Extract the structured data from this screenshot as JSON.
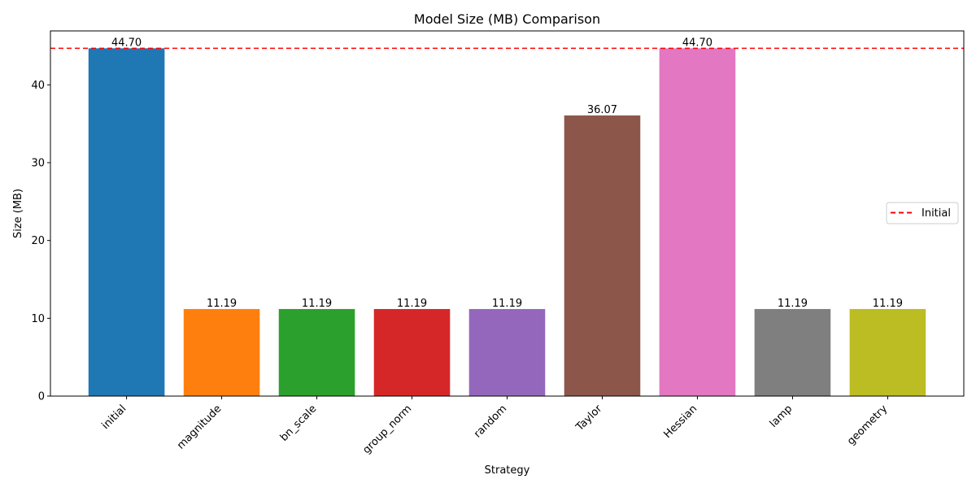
{
  "chart_data": {
    "type": "bar",
    "title": "Model Size (MB) Comparison",
    "xlabel": "Strategy",
    "ylabel": "Size (MB)",
    "categories": [
      "initial",
      "magnitude",
      "bn_scale",
      "group_norm",
      "random",
      "Taylor",
      "Hessian",
      "lamp",
      "geometry"
    ],
    "values": [
      44.7,
      11.19,
      11.19,
      11.19,
      11.19,
      36.07,
      44.7,
      11.19,
      11.19
    ],
    "value_labels": [
      "44.70",
      "11.19",
      "11.19",
      "11.19",
      "11.19",
      "36.07",
      "44.70",
      "11.19",
      "11.19"
    ],
    "colors": [
      "#1f77b4",
      "#ff7f0e",
      "#2ca02c",
      "#d62728",
      "#9467bd",
      "#8c564b",
      "#e377c2",
      "#7f7f7f",
      "#bcbd22"
    ],
    "ylim": [
      0,
      46.935
    ],
    "yticks": [
      0,
      10,
      20,
      30,
      40
    ],
    "ytick_labels": [
      "0",
      "10",
      "20",
      "30",
      "40"
    ],
    "grid": false,
    "reference_line": {
      "value": 44.7,
      "label": "Initial",
      "color": "#ff0000",
      "style": "dashed"
    },
    "legend": {
      "placement": "center-right",
      "entries": [
        "Initial"
      ]
    }
  }
}
